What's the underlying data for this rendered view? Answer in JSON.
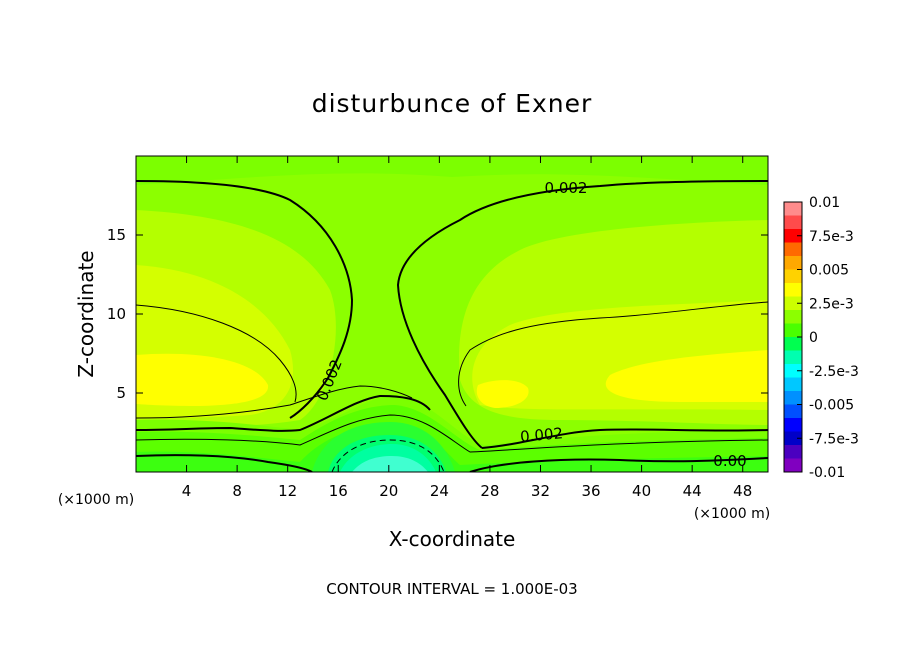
{
  "chart_data": {
    "type": "heatmap",
    "title": "disturbunce of Exner",
    "xlabel": "X-coordinate",
    "ylabel": "Z-coordinate",
    "x_unit_left": "(×1000 m)",
    "x_unit_right": "(×1000 m)",
    "footer": "CONTOUR INTERVAL = 1.000E-03",
    "xlim": [
      0,
      50
    ],
    "ylim": [
      0,
      20
    ],
    "x_ticks": [
      4,
      8,
      12,
      16,
      20,
      24,
      28,
      32,
      36,
      40,
      44,
      48
    ],
    "y_ticks": [
      5,
      10,
      15
    ],
    "colorbar": {
      "ticks": [
        "0.01",
        "7.5e-3",
        "0.005",
        "2.5e-3",
        "0",
        "-2.5e-3",
        "-0.005",
        "-7.5e-3",
        "-0.01"
      ],
      "colors": [
        "#ff8c8c",
        "#ff4b4b",
        "#ff0000",
        "#ff6a00",
        "#ffa800",
        "#ffd200",
        "#ffff00",
        "#ccff00",
        "#8cff00",
        "#4aff00",
        "#00ff50",
        "#00ffb0",
        "#00ffff",
        "#00c8ff",
        "#0090ff",
        "#0050ff",
        "#0000ff",
        "#0000c8",
        "#4b00c0",
        "#8000c0"
      ]
    },
    "contour_labels": [
      {
        "text": "0.002",
        "x": 36,
        "y": 17.8
      },
      {
        "text": "0.002",
        "x": 14.5,
        "y": 5.8
      },
      {
        "text": "0.002",
        "x": 32,
        "y": 2.3
      },
      {
        "text": "0.00",
        "x": 47,
        "y": 0.7
      }
    ],
    "field_summary": {
      "min_region": {
        "x": 20,
        "z": 0,
        "value": "-2.5e-3"
      },
      "max_regions": [
        {
          "x": 5,
          "z": 5.5,
          "value": "3.5e-3"
        },
        {
          "x": 43,
          "z": 6,
          "value": "3.5e-3"
        }
      ],
      "background_value": "2e-3"
    }
  }
}
